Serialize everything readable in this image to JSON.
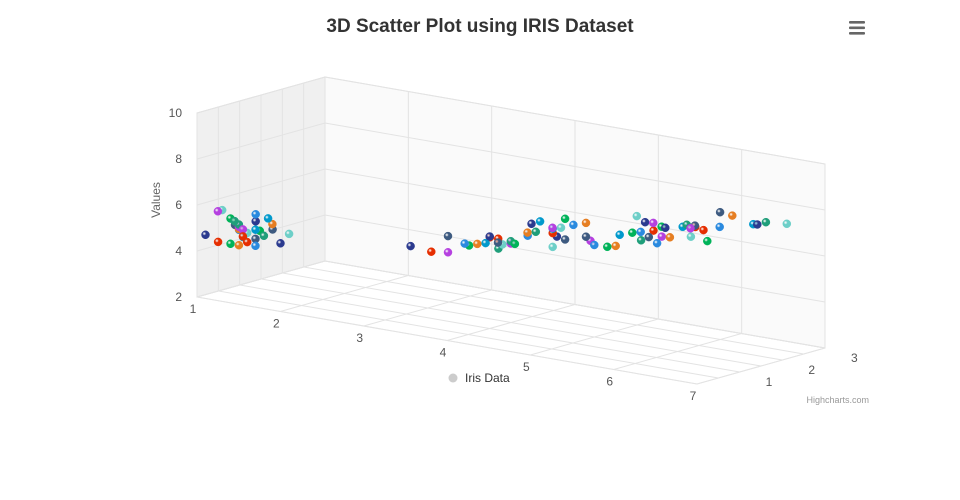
{
  "chart_data": {
    "type": "scatter",
    "title": "3D Scatter Plot using IRIS Dataset",
    "ylabel": "Values",
    "xlim": [
      1,
      7
    ],
    "ylim": [
      2,
      10
    ],
    "zlim": [
      0,
      3
    ],
    "x_ticks": [
      "1",
      "2",
      "3",
      "4",
      "5",
      "6",
      "7"
    ],
    "y_ticks": [
      "2",
      "4",
      "6",
      "8",
      "10"
    ],
    "z_ticks": [
      "1",
      "2",
      "3"
    ],
    "grid": true,
    "legend_position": "bottom-center",
    "series": [
      {
        "name": "Iris Data",
        "color_by_point": true,
        "points": [
          {
            "x": 1.0,
            "y": 4.6,
            "z": 0.2
          },
          {
            "x": 1.1,
            "y": 4.3,
            "z": 0.3
          },
          {
            "x": 1.2,
            "y": 5.8,
            "z": 0.1
          },
          {
            "x": 1.2,
            "y": 5.0,
            "z": 0.5
          },
          {
            "x": 1.3,
            "y": 4.4,
            "z": 0.2
          },
          {
            "x": 1.3,
            "y": 4.9,
            "z": 0.4
          },
          {
            "x": 1.4,
            "y": 5.1,
            "z": 0.2
          },
          {
            "x": 1.4,
            "y": 4.7,
            "z": 0.3
          },
          {
            "x": 1.4,
            "y": 5.5,
            "z": 0.1
          },
          {
            "x": 1.5,
            "y": 5.0,
            "z": 0.2
          },
          {
            "x": 1.5,
            "y": 5.4,
            "z": 0.4
          },
          {
            "x": 1.5,
            "y": 4.6,
            "z": 0.2
          },
          {
            "x": 1.5,
            "y": 5.2,
            "z": 0.1
          },
          {
            "x": 1.6,
            "y": 4.8,
            "z": 0.2
          },
          {
            "x": 1.6,
            "y": 5.1,
            "z": 0.3
          },
          {
            "x": 1.6,
            "y": 4.5,
            "z": 0.2
          },
          {
            "x": 1.7,
            "y": 5.4,
            "z": 0.4
          },
          {
            "x": 1.7,
            "y": 5.7,
            "z": 0.3
          },
          {
            "x": 1.7,
            "y": 5.0,
            "z": 0.2
          },
          {
            "x": 1.9,
            "y": 5.1,
            "z": 0.4
          },
          {
            "x": 1.9,
            "y": 4.8,
            "z": 0.2
          },
          {
            "x": 1.5,
            "y": 4.9,
            "z": 0.1
          },
          {
            "x": 1.4,
            "y": 5.2,
            "z": 0.2
          },
          {
            "x": 1.6,
            "y": 5.0,
            "z": 0.6
          },
          {
            "x": 1.3,
            "y": 5.5,
            "z": 0.2
          },
          {
            "x": 1.5,
            "y": 5.7,
            "z": 0.4
          },
          {
            "x": 1.4,
            "y": 4.4,
            "z": 0.2
          },
          {
            "x": 1.6,
            "y": 5.2,
            "z": 0.2
          },
          {
            "x": 1.4,
            "y": 5.3,
            "z": 0.2
          },
          {
            "x": 1.2,
            "y": 5.8,
            "z": 0.2
          },
          {
            "x": 3.0,
            "y": 4.9,
            "z": 1.1
          },
          {
            "x": 3.3,
            "y": 4.9,
            "z": 1.0
          },
          {
            "x": 3.5,
            "y": 5.0,
            "z": 1.0
          },
          {
            "x": 3.5,
            "y": 5.7,
            "z": 1.0
          },
          {
            "x": 3.6,
            "y": 5.2,
            "z": 1.3
          },
          {
            "x": 3.7,
            "y": 5.5,
            "z": 1.0
          },
          {
            "x": 3.8,
            "y": 5.5,
            "z": 1.1
          },
          {
            "x": 3.9,
            "y": 5.6,
            "z": 1.1
          },
          {
            "x": 3.9,
            "y": 5.2,
            "z": 1.4
          },
          {
            "x": 4.0,
            "y": 5.5,
            "z": 1.3
          },
          {
            "x": 4.0,
            "y": 6.0,
            "z": 1.0
          },
          {
            "x": 4.0,
            "y": 5.8,
            "z": 1.2
          },
          {
            "x": 4.1,
            "y": 5.6,
            "z": 1.3
          },
          {
            "x": 4.1,
            "y": 5.8,
            "z": 1.0
          },
          {
            "x": 4.2,
            "y": 5.7,
            "z": 1.2
          },
          {
            "x": 4.2,
            "y": 5.9,
            "z": 1.5
          },
          {
            "x": 4.3,
            "y": 6.2,
            "z": 1.3
          },
          {
            "x": 4.4,
            "y": 6.7,
            "z": 1.4
          },
          {
            "x": 4.4,
            "y": 6.3,
            "z": 1.3
          },
          {
            "x": 4.5,
            "y": 5.6,
            "z": 1.5
          },
          {
            "x": 4.5,
            "y": 6.0,
            "z": 1.6
          },
          {
            "x": 4.5,
            "y": 6.2,
            "z": 1.5
          },
          {
            "x": 4.6,
            "y": 6.6,
            "z": 1.3
          },
          {
            "x": 4.7,
            "y": 6.1,
            "z": 1.4
          },
          {
            "x": 4.7,
            "y": 7.0,
            "z": 1.4
          },
          {
            "x": 4.8,
            "y": 6.8,
            "z": 1.4
          },
          {
            "x": 4.9,
            "y": 6.9,
            "z": 1.5
          },
          {
            "x": 4.5,
            "y": 6.4,
            "z": 1.5
          },
          {
            "x": 4.1,
            "y": 5.7,
            "z": 1.3
          },
          {
            "x": 4.6,
            "y": 6.5,
            "z": 1.5
          },
          {
            "x": 4.4,
            "y": 6.7,
            "z": 1.2
          },
          {
            "x": 3.9,
            "y": 5.8,
            "z": 1.2
          },
          {
            "x": 4.8,
            "y": 5.9,
            "z": 1.8
          },
          {
            "x": 4.9,
            "y": 6.3,
            "z": 1.5
          },
          {
            "x": 4.9,
            "y": 5.6,
            "z": 2.0
          },
          {
            "x": 5.0,
            "y": 6.0,
            "z": 1.5
          },
          {
            "x": 5.0,
            "y": 5.7,
            "z": 2.0
          },
          {
            "x": 5.1,
            "y": 6.3,
            "z": 1.9
          },
          {
            "x": 5.1,
            "y": 5.8,
            "z": 2.4
          },
          {
            "x": 5.1,
            "y": 6.9,
            "z": 2.3
          },
          {
            "x": 5.2,
            "y": 6.7,
            "z": 2.3
          },
          {
            "x": 5.3,
            "y": 6.4,
            "z": 2.3
          },
          {
            "x": 5.4,
            "y": 6.2,
            "z": 2.3
          },
          {
            "x": 5.5,
            "y": 6.5,
            "z": 1.8
          },
          {
            "x": 5.5,
            "y": 6.8,
            "z": 2.1
          },
          {
            "x": 5.6,
            "y": 6.3,
            "z": 1.8
          },
          {
            "x": 5.6,
            "y": 6.4,
            "z": 2.1
          },
          {
            "x": 5.6,
            "y": 6.7,
            "z": 2.4
          },
          {
            "x": 5.7,
            "y": 6.9,
            "z": 2.3
          },
          {
            "x": 5.8,
            "y": 6.5,
            "z": 2.2
          },
          {
            "x": 5.8,
            "y": 7.2,
            "z": 1.6
          },
          {
            "x": 5.9,
            "y": 6.8,
            "z": 2.3
          },
          {
            "x": 6.0,
            "y": 7.2,
            "z": 1.8
          },
          {
            "x": 6.1,
            "y": 7.7,
            "z": 2.3
          },
          {
            "x": 6.1,
            "y": 6.6,
            "z": 2.0
          },
          {
            "x": 6.3,
            "y": 7.4,
            "z": 1.9
          },
          {
            "x": 6.4,
            "y": 7.9,
            "z": 2.0
          },
          {
            "x": 6.6,
            "y": 7.6,
            "z": 2.1
          },
          {
            "x": 6.7,
            "y": 7.7,
            "z": 2.2
          },
          {
            "x": 6.9,
            "y": 7.7,
            "z": 2.3
          },
          {
            "x": 6.7,
            "y": 7.7,
            "z": 2.0
          },
          {
            "x": 5.7,
            "y": 6.7,
            "z": 2.5
          },
          {
            "x": 5.4,
            "y": 6.9,
            "z": 2.1
          },
          {
            "x": 5.9,
            "y": 7.1,
            "z": 2.1
          },
          {
            "x": 5.2,
            "y": 6.4,
            "z": 2.0
          },
          {
            "x": 5.3,
            "y": 6.5,
            "z": 2.0
          }
        ]
      }
    ]
  },
  "legend": {
    "label": "Iris Data",
    "marker_color": "#cccccc"
  },
  "credits": "Highcharts.com",
  "menu": {
    "icon": "hamburger-menu-icon",
    "color": "#666666"
  },
  "palette": [
    "#e62e00",
    "#00b359",
    "#0099cc",
    "#2b3a8f",
    "#3d5a80",
    "#e67e22",
    "#6dcfc8",
    "#b540e0",
    "#2a8adf",
    "#1f9e7a"
  ]
}
